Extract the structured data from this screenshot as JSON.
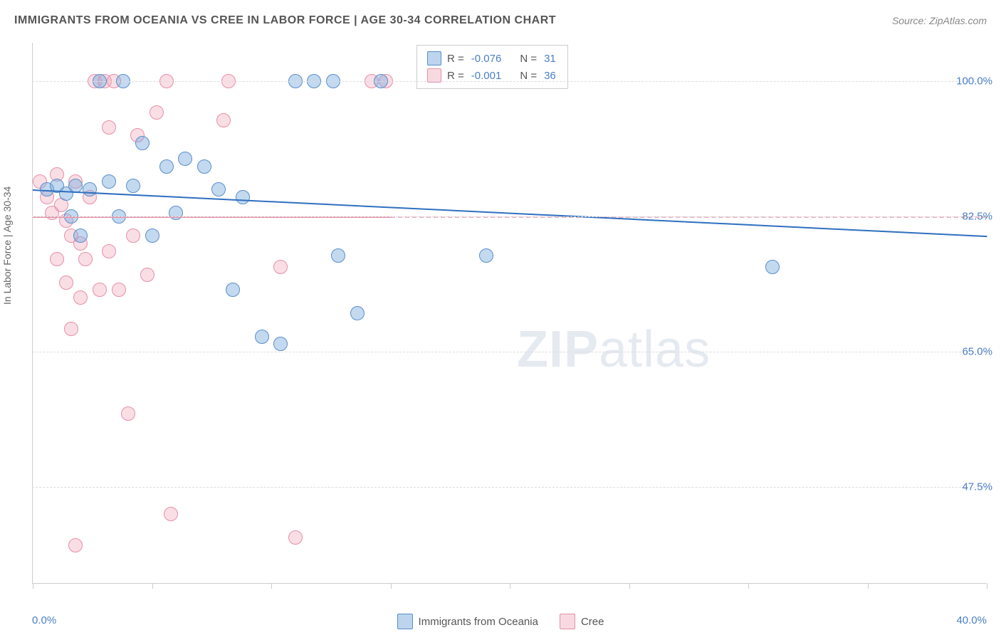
{
  "header": {
    "title": "IMMIGRANTS FROM OCEANIA VS CREE IN LABOR FORCE | AGE 30-34 CORRELATION CHART",
    "source": "Source: ZipAtlas.com"
  },
  "axes": {
    "y_label": "In Labor Force | Age 30-34",
    "x_min_label": "0.0%",
    "x_max_label": "40.0%",
    "x_range": [
      0,
      40
    ],
    "y_range": [
      35,
      105
    ],
    "y_ticks": [
      {
        "value": 100.0,
        "label": "100.0%"
      },
      {
        "value": 82.5,
        "label": "82.5%"
      },
      {
        "value": 65.0,
        "label": "65.0%"
      },
      {
        "value": 47.5,
        "label": "47.5%"
      }
    ],
    "x_tick_positions": [
      0,
      5,
      10,
      15,
      20,
      25,
      30,
      35,
      40
    ],
    "grid_color": "#dddddd",
    "axis_color": "#cccccc"
  },
  "watermark": {
    "zip": "ZIP",
    "atlas": "atlas"
  },
  "stat_box": {
    "rows": [
      {
        "series": "blue",
        "r_label": "R = ",
        "r_value": "-0.076",
        "n_label": "N = ",
        "n_value": "31"
      },
      {
        "series": "pink",
        "r_label": "R = ",
        "r_value": "-0.001",
        "n_label": "N = ",
        "n_value": "36"
      }
    ]
  },
  "legend": {
    "items": [
      {
        "series": "blue",
        "label": "Immigrants from Oceania"
      },
      {
        "series": "pink",
        "label": "Cree"
      }
    ]
  },
  "series": {
    "blue": {
      "color_fill": "rgba(122,170,222,0.45)",
      "color_stroke": "#5a8fc9",
      "trend": {
        "x1": 0,
        "y1": 86,
        "x2": 40,
        "y2": 80,
        "color": "#2f6fc0",
        "width": 2
      },
      "points": [
        {
          "x": 0.6,
          "y": 86
        },
        {
          "x": 1.0,
          "y": 86.5
        },
        {
          "x": 1.4,
          "y": 85.5
        },
        {
          "x": 1.8,
          "y": 86.5
        },
        {
          "x": 2.4,
          "y": 86
        },
        {
          "x": 1.6,
          "y": 82.5
        },
        {
          "x": 3.2,
          "y": 87
        },
        {
          "x": 4.2,
          "y": 86.5
        },
        {
          "x": 3.6,
          "y": 82.5
        },
        {
          "x": 2.8,
          "y": 100
        },
        {
          "x": 3.8,
          "y": 100
        },
        {
          "x": 4.6,
          "y": 92
        },
        {
          "x": 5.6,
          "y": 89
        },
        {
          "x": 6.4,
          "y": 90
        },
        {
          "x": 7.2,
          "y": 89
        },
        {
          "x": 7.8,
          "y": 86
        },
        {
          "x": 8.8,
          "y": 85
        },
        {
          "x": 11.0,
          "y": 100
        },
        {
          "x": 11.8,
          "y": 100
        },
        {
          "x": 12.6,
          "y": 100
        },
        {
          "x": 14.6,
          "y": 100
        },
        {
          "x": 8.4,
          "y": 73
        },
        {
          "x": 9.6,
          "y": 67
        },
        {
          "x": 10.4,
          "y": 66
        },
        {
          "x": 12.8,
          "y": 77.5
        },
        {
          "x": 13.6,
          "y": 70
        },
        {
          "x": 19.0,
          "y": 77.5
        },
        {
          "x": 31.0,
          "y": 76
        },
        {
          "x": 5.0,
          "y": 80
        },
        {
          "x": 6.0,
          "y": 83
        },
        {
          "x": 2.0,
          "y": 80
        }
      ]
    },
    "pink": {
      "color_fill": "rgba(240,160,180,0.35)",
      "color_stroke": "#e590a8",
      "trend_solid": {
        "x1": 0,
        "y1": 82.5,
        "x2": 15,
        "y2": 82.5,
        "color": "#e590a8",
        "width": 2
      },
      "trend_dashed": {
        "x1": 15,
        "y1": 82.5,
        "x2": 40,
        "y2": 82.5,
        "color": "#e8b0c0",
        "width": 2
      },
      "points": [
        {
          "x": 0.3,
          "y": 87
        },
        {
          "x": 0.6,
          "y": 85
        },
        {
          "x": 0.8,
          "y": 83
        },
        {
          "x": 1.0,
          "y": 88
        },
        {
          "x": 1.2,
          "y": 84
        },
        {
          "x": 1.4,
          "y": 82
        },
        {
          "x": 1.6,
          "y": 80
        },
        {
          "x": 1.8,
          "y": 87
        },
        {
          "x": 2.0,
          "y": 79
        },
        {
          "x": 2.2,
          "y": 77
        },
        {
          "x": 2.4,
          "y": 85
        },
        {
          "x": 1.0,
          "y": 77
        },
        {
          "x": 1.4,
          "y": 74
        },
        {
          "x": 2.0,
          "y": 72
        },
        {
          "x": 2.8,
          "y": 73
        },
        {
          "x": 3.6,
          "y": 73
        },
        {
          "x": 3.2,
          "y": 78
        },
        {
          "x": 4.2,
          "y": 80
        },
        {
          "x": 4.8,
          "y": 75
        },
        {
          "x": 1.6,
          "y": 68
        },
        {
          "x": 2.6,
          "y": 100
        },
        {
          "x": 3.0,
          "y": 100
        },
        {
          "x": 3.4,
          "y": 100
        },
        {
          "x": 5.6,
          "y": 100
        },
        {
          "x": 8.2,
          "y": 100
        },
        {
          "x": 14.2,
          "y": 100
        },
        {
          "x": 14.8,
          "y": 100
        },
        {
          "x": 3.2,
          "y": 94
        },
        {
          "x": 4.4,
          "y": 93
        },
        {
          "x": 5.2,
          "y": 96
        },
        {
          "x": 8.0,
          "y": 95
        },
        {
          "x": 10.4,
          "y": 76
        },
        {
          "x": 5.8,
          "y": 44
        },
        {
          "x": 1.8,
          "y": 40
        },
        {
          "x": 4.0,
          "y": 57
        },
        {
          "x": 11.0,
          "y": 41
        }
      ]
    }
  },
  "style": {
    "background": "#ffffff",
    "point_radius": 10,
    "title_color": "#555555",
    "source_color": "#888888",
    "label_color": "#4a7fc4",
    "font_family": "Arial"
  }
}
